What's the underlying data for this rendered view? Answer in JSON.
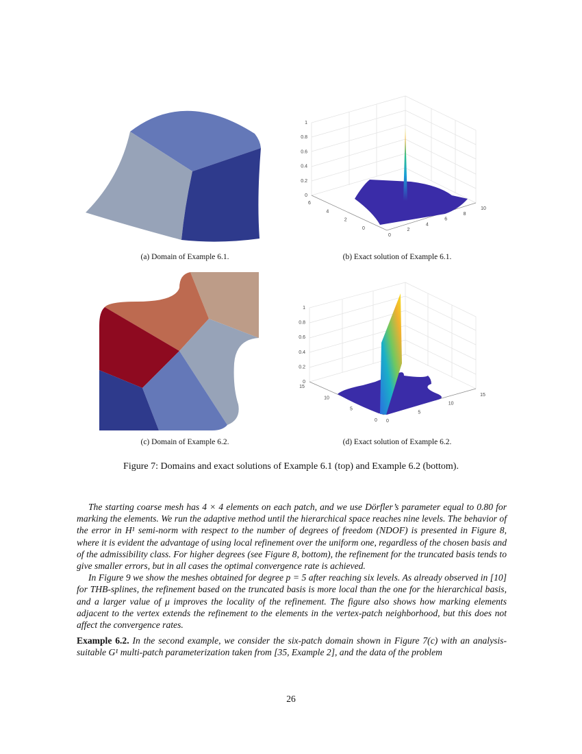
{
  "colors": {
    "patch_dark_blue": "#2e3a8c",
    "patch_mid_blue": "#6478b8",
    "patch_gray": "#97a3b8",
    "patch_dark_red": "#8e0a20",
    "patch_orange": "#bd6a50",
    "patch_tan": "#bd9c88",
    "surface": "#3a2ca8"
  },
  "figure": {
    "subcaptions": [
      "(a) Domain of Example 6.1.",
      "(b) Exact solution of Example 6.1.",
      "(c) Domain of Example 6.2.",
      "(d) Exact solution of Example 6.2."
    ],
    "caption": "Figure 7: Domains and exact solutions of Example 6.1 (top) and Example 6.2 (bottom).",
    "plot_b": {
      "z_ticks": [
        "0",
        "0.2",
        "0.4",
        "0.6",
        "0.8",
        "1"
      ],
      "y_ticks": [
        "6",
        "4",
        "2",
        "0"
      ],
      "x_ticks": [
        "0",
        "2",
        "4",
        "6",
        "8",
        "10"
      ]
    },
    "plot_d": {
      "z_ticks": [
        "0",
        "0.2",
        "0.4",
        "0.6",
        "0.8",
        "1"
      ],
      "y_ticks": [
        "15",
        "10",
        "5",
        "0"
      ],
      "x_ticks": [
        "0",
        "5",
        "10",
        "15"
      ]
    }
  },
  "body": {
    "p1": "The starting coarse mesh has 4 × 4 elements on each patch, and we use Dörfler’s parameter equal to 0.80 for marking the elements. We run the adaptive method until the hierarchical space reaches nine levels. The behavior of the error in H¹ semi-norm with respect to the number of degrees of freedom (NDOF) is presented in Figure 8, where it is evident the advantage of using local refinement over the uniform one, regardless of the chosen basis and of the admissibility class. For higher degrees (see Figure 8, bottom), the refinement for the truncated basis tends to give smaller errors, but in all cases the optimal convergence rate is achieved.",
    "p2": "In Figure 9 we show the meshes obtained for degree p = 5 after reaching six levels. As already observed in [10] for THB-splines, the refinement based on the truncated basis is more local than the one for the hierarchical basis, and a larger value of μ improves the locality of the refinement. The figure also shows how marking elements adjacent to the vertex extends the refinement to the elements in the vertex-patch neighborhood, but this does not affect the convergence rates.",
    "p3_label": "Example 6.2.",
    "p3": "In the second example, we consider the six-patch domain shown in Figure 7(c) with an analysis-suitable G¹ multi-patch parameterization taken from [35, Example 2], and the data of the problem"
  },
  "page_number": "26"
}
